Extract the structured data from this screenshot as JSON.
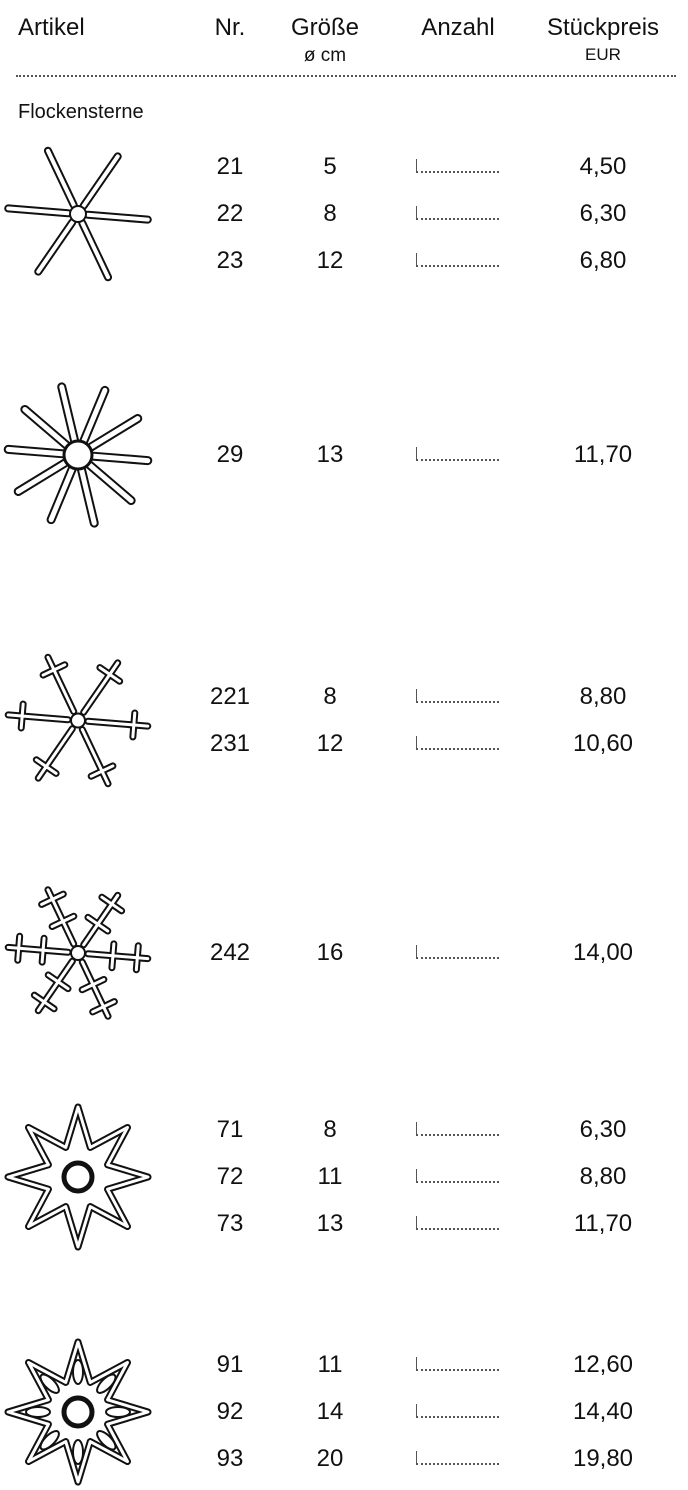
{
  "header": {
    "columns": [
      {
        "label": "Artikel"
      },
      {
        "label": "Nr."
      },
      {
        "label": "Größe",
        "sublabel": "ø cm"
      },
      {
        "label": "Anzahl"
      },
      {
        "label": "Stückpreis",
        "sublabel": "EUR"
      }
    ]
  },
  "section": {
    "title": "Flockensterne",
    "groups": [
      {
        "rows": [
          {
            "nr": "21",
            "size": "5",
            "price": "4,50"
          },
          {
            "nr": "22",
            "size": "8",
            "price": "6,30"
          },
          {
            "nr": "23",
            "size": "12",
            "price": "6,80"
          }
        ]
      },
      {
        "rows": [
          {
            "nr": "29",
            "size": "13",
            "price": "11,70"
          }
        ]
      },
      {
        "rows": [
          {
            "nr": "221",
            "size": "8",
            "price": "8,80"
          },
          {
            "nr": "231",
            "size": "12",
            "price": "10,60"
          }
        ]
      },
      {
        "rows": [
          {
            "nr": "242",
            "size": "16",
            "price": "14,00"
          }
        ]
      },
      {
        "rows": [
          {
            "nr": "71",
            "size": "8",
            "price": "6,30"
          },
          {
            "nr": "72",
            "size": "11",
            "price": "8,80"
          },
          {
            "nr": "73",
            "size": "13",
            "price": "11,70"
          }
        ]
      },
      {
        "rows": [
          {
            "nr": "91",
            "size": "11",
            "price": "12,60"
          },
          {
            "nr": "92",
            "size": "14",
            "price": "14,40"
          },
          {
            "nr": "93",
            "size": "20",
            "price": "19,80"
          }
        ]
      }
    ]
  }
}
